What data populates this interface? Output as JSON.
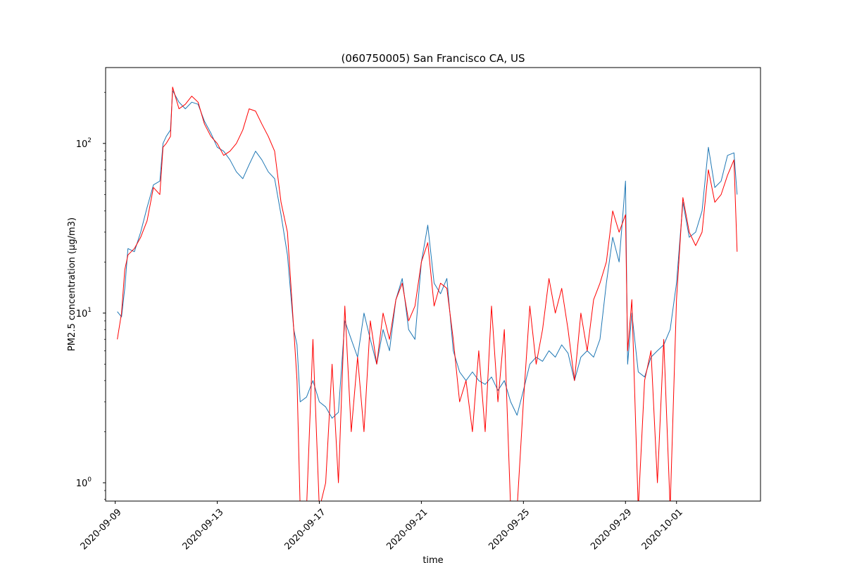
{
  "chart_data": {
    "type": "line",
    "title": "(060750005) San Francisco CA, US",
    "xlabel": "time",
    "ylabel": "PM2.5 concentration (μg/m3)",
    "yscale": "log",
    "ylim": [
      0.78,
      280
    ],
    "xlim": [
      "2020-09-08T15:00",
      "2020-10-04T07:00"
    ],
    "grid": false,
    "legend": "none",
    "x_ticks": [
      "2020-09-09",
      "2020-09-13",
      "2020-09-17",
      "2020-09-21",
      "2020-09-25",
      "2020-09-29",
      "2020-10-01"
    ],
    "y_ticks": [
      {
        "value": 1,
        "base": "10",
        "exp": "0"
      },
      {
        "value": 10,
        "base": "10",
        "exp": "1"
      },
      {
        "value": 100,
        "base": "10",
        "exp": "2"
      }
    ],
    "series": [
      {
        "color": "#1f77b4",
        "points": [
          [
            "2020-09-09T02:00",
            10.2
          ],
          [
            "2020-09-09T06:00",
            9.5
          ],
          [
            "2020-09-09T09:00",
            14
          ],
          [
            "2020-09-09T12:00",
            24
          ],
          [
            "2020-09-09T18:00",
            23
          ],
          [
            "2020-09-10T00:00",
            30
          ],
          [
            "2020-09-10T06:00",
            42
          ],
          [
            "2020-09-10T12:00",
            57
          ],
          [
            "2020-09-10T18:00",
            60
          ],
          [
            "2020-09-10T21:00",
            100
          ],
          [
            "2020-09-11T00:00",
            110
          ],
          [
            "2020-09-11T04:00",
            120
          ],
          [
            "2020-09-11T06:00",
            205
          ],
          [
            "2020-09-11T12:00",
            175
          ],
          [
            "2020-09-11T18:00",
            160
          ],
          [
            "2020-09-12T00:00",
            175
          ],
          [
            "2020-09-12T06:00",
            170
          ],
          [
            "2020-09-12T12:00",
            135
          ],
          [
            "2020-09-12T18:00",
            115
          ],
          [
            "2020-09-13T00:00",
            95
          ],
          [
            "2020-09-13T06:00",
            90
          ],
          [
            "2020-09-13T12:00",
            80
          ],
          [
            "2020-09-13T18:00",
            68
          ],
          [
            "2020-09-14T00:00",
            62
          ],
          [
            "2020-09-14T06:00",
            75
          ],
          [
            "2020-09-14T12:00",
            90
          ],
          [
            "2020-09-14T18:00",
            80
          ],
          [
            "2020-09-15T00:00",
            68
          ],
          [
            "2020-09-15T06:00",
            62
          ],
          [
            "2020-09-15T12:00",
            38
          ],
          [
            "2020-09-15T18:00",
            22
          ],
          [
            "2020-09-16T00:00",
            8
          ],
          [
            "2020-09-16T03:00",
            6.5
          ],
          [
            "2020-09-16T06:00",
            3
          ],
          [
            "2020-09-16T12:00",
            3.2
          ],
          [
            "2020-09-16T18:00",
            4
          ],
          [
            "2020-09-17T00:00",
            3
          ],
          [
            "2020-09-17T06:00",
            2.8
          ],
          [
            "2020-09-17T12:00",
            2.4
          ],
          [
            "2020-09-17T18:00",
            2.6
          ],
          [
            "2020-09-18T00:00",
            9
          ],
          [
            "2020-09-18T06:00",
            7
          ],
          [
            "2020-09-18T12:00",
            5.5
          ],
          [
            "2020-09-18T18:00",
            10
          ],
          [
            "2020-09-19T00:00",
            7
          ],
          [
            "2020-09-19T06:00",
            5
          ],
          [
            "2020-09-19T12:00",
            8
          ],
          [
            "2020-09-19T18:00",
            6
          ],
          [
            "2020-09-20T00:00",
            12
          ],
          [
            "2020-09-20T06:00",
            16
          ],
          [
            "2020-09-20T12:00",
            8
          ],
          [
            "2020-09-20T18:00",
            7
          ],
          [
            "2020-09-21T00:00",
            20
          ],
          [
            "2020-09-21T06:00",
            33
          ],
          [
            "2020-09-21T12:00",
            15
          ],
          [
            "2020-09-21T18:00",
            13
          ],
          [
            "2020-09-22T00:00",
            16
          ],
          [
            "2020-09-22T06:00",
            6
          ],
          [
            "2020-09-22T12:00",
            4.5
          ],
          [
            "2020-09-22T18:00",
            4
          ],
          [
            "2020-09-23T00:00",
            4.5
          ],
          [
            "2020-09-23T06:00",
            4
          ],
          [
            "2020-09-23T12:00",
            3.8
          ],
          [
            "2020-09-23T18:00",
            4.2
          ],
          [
            "2020-09-24T00:00",
            3.5
          ],
          [
            "2020-09-24T06:00",
            4
          ],
          [
            "2020-09-24T12:00",
            3
          ],
          [
            "2020-09-24T18:00",
            2.5
          ],
          [
            "2020-09-25T00:00",
            3.5
          ],
          [
            "2020-09-25T06:00",
            5
          ],
          [
            "2020-09-25T12:00",
            5.5
          ],
          [
            "2020-09-25T18:00",
            5.2
          ],
          [
            "2020-09-26T00:00",
            6
          ],
          [
            "2020-09-26T06:00",
            5.5
          ],
          [
            "2020-09-26T12:00",
            6.5
          ],
          [
            "2020-09-26T18:00",
            5.8
          ],
          [
            "2020-09-27T00:00",
            4
          ],
          [
            "2020-09-27T06:00",
            5.5
          ],
          [
            "2020-09-27T12:00",
            6
          ],
          [
            "2020-09-27T18:00",
            5.5
          ],
          [
            "2020-09-28T00:00",
            7
          ],
          [
            "2020-09-28T06:00",
            15
          ],
          [
            "2020-09-28T12:00",
            28
          ],
          [
            "2020-09-28T18:00",
            20
          ],
          [
            "2020-09-29T00:00",
            60
          ],
          [
            "2020-09-29T02:00",
            5
          ],
          [
            "2020-09-29T06:00",
            10
          ],
          [
            "2020-09-29T12:00",
            4.5
          ],
          [
            "2020-09-29T18:00",
            4.2
          ],
          [
            "2020-09-30T00:00",
            5.5
          ],
          [
            "2020-09-30T06:00",
            6
          ],
          [
            "2020-09-30T12:00",
            6.5
          ],
          [
            "2020-09-30T18:00",
            8
          ],
          [
            "2020-10-01T00:00",
            15
          ],
          [
            "2020-10-01T06:00",
            45
          ],
          [
            "2020-10-01T12:00",
            28
          ],
          [
            "2020-10-01T18:00",
            30
          ],
          [
            "2020-10-02T00:00",
            40
          ],
          [
            "2020-10-02T06:00",
            95
          ],
          [
            "2020-10-02T12:00",
            55
          ],
          [
            "2020-10-02T18:00",
            60
          ],
          [
            "2020-10-03T00:00",
            85
          ],
          [
            "2020-10-03T06:00",
            88
          ],
          [
            "2020-10-03T09:00",
            50
          ]
        ]
      },
      {
        "color": "#ff0000",
        "points": [
          [
            "2020-09-09T02:00",
            7
          ],
          [
            "2020-09-09T06:00",
            10
          ],
          [
            "2020-09-09T09:00",
            18
          ],
          [
            "2020-09-09T12:00",
            22
          ],
          [
            "2020-09-09T18:00",
            24
          ],
          [
            "2020-09-10T00:00",
            28
          ],
          [
            "2020-09-10T06:00",
            35
          ],
          [
            "2020-09-10T12:00",
            55
          ],
          [
            "2020-09-10T18:00",
            50
          ],
          [
            "2020-09-10T21:00",
            95
          ],
          [
            "2020-09-11T00:00",
            100
          ],
          [
            "2020-09-11T04:00",
            110
          ],
          [
            "2020-09-11T06:00",
            215
          ],
          [
            "2020-09-11T12:00",
            160
          ],
          [
            "2020-09-11T18:00",
            170
          ],
          [
            "2020-09-12T00:00",
            190
          ],
          [
            "2020-09-12T06:00",
            175
          ],
          [
            "2020-09-12T12:00",
            130
          ],
          [
            "2020-09-12T18:00",
            110
          ],
          [
            "2020-09-13T00:00",
            100
          ],
          [
            "2020-09-13T06:00",
            85
          ],
          [
            "2020-09-13T12:00",
            90
          ],
          [
            "2020-09-13T18:00",
            100
          ],
          [
            "2020-09-14T00:00",
            120
          ],
          [
            "2020-09-14T06:00",
            160
          ],
          [
            "2020-09-14T12:00",
            155
          ],
          [
            "2020-09-14T18:00",
            130
          ],
          [
            "2020-09-15T00:00",
            110
          ],
          [
            "2020-09-15T06:00",
            90
          ],
          [
            "2020-09-15T12:00",
            45
          ],
          [
            "2020-09-15T18:00",
            30
          ],
          [
            "2020-09-16T00:00",
            8
          ],
          [
            "2020-09-16T03:00",
            4
          ],
          [
            "2020-09-16T06:00",
            0.7
          ],
          [
            "2020-09-16T12:00",
            0.7
          ],
          [
            "2020-09-16T18:00",
            7
          ],
          [
            "2020-09-17T00:00",
            0.7
          ],
          [
            "2020-09-17T06:00",
            1
          ],
          [
            "2020-09-17T12:00",
            5
          ],
          [
            "2020-09-17T18:00",
            1
          ],
          [
            "2020-09-18T00:00",
            11
          ],
          [
            "2020-09-18T06:00",
            2
          ],
          [
            "2020-09-18T12:00",
            5.5
          ],
          [
            "2020-09-18T18:00",
            2
          ],
          [
            "2020-09-19T00:00",
            9
          ],
          [
            "2020-09-19T06:00",
            5
          ],
          [
            "2020-09-19T12:00",
            10
          ],
          [
            "2020-09-19T18:00",
            7
          ],
          [
            "2020-09-20T00:00",
            12
          ],
          [
            "2020-09-20T06:00",
            15
          ],
          [
            "2020-09-20T12:00",
            9
          ],
          [
            "2020-09-20T18:00",
            11
          ],
          [
            "2020-09-21T00:00",
            20
          ],
          [
            "2020-09-21T06:00",
            26
          ],
          [
            "2020-09-21T12:00",
            11
          ],
          [
            "2020-09-21T18:00",
            15
          ],
          [
            "2020-09-22T00:00",
            14
          ],
          [
            "2020-09-22T06:00",
            7
          ],
          [
            "2020-09-22T12:00",
            3
          ],
          [
            "2020-09-22T18:00",
            4
          ],
          [
            "2020-09-23T00:00",
            2
          ],
          [
            "2020-09-23T06:00",
            6
          ],
          [
            "2020-09-23T12:00",
            2
          ],
          [
            "2020-09-23T18:00",
            11
          ],
          [
            "2020-09-24T00:00",
            3
          ],
          [
            "2020-09-24T06:00",
            8
          ],
          [
            "2020-09-24T12:00",
            0.7
          ],
          [
            "2020-09-24T18:00",
            0.7
          ],
          [
            "2020-09-25T00:00",
            3
          ],
          [
            "2020-09-25T06:00",
            11
          ],
          [
            "2020-09-25T12:00",
            5
          ],
          [
            "2020-09-25T18:00",
            8
          ],
          [
            "2020-09-26T00:00",
            16
          ],
          [
            "2020-09-26T06:00",
            10
          ],
          [
            "2020-09-26T12:00",
            14
          ],
          [
            "2020-09-26T18:00",
            8
          ],
          [
            "2020-09-27T00:00",
            4
          ],
          [
            "2020-09-27T06:00",
            10
          ],
          [
            "2020-09-27T12:00",
            6
          ],
          [
            "2020-09-27T18:00",
            12
          ],
          [
            "2020-09-28T00:00",
            15
          ],
          [
            "2020-09-28T06:00",
            20
          ],
          [
            "2020-09-28T12:00",
            40
          ],
          [
            "2020-09-28T18:00",
            30
          ],
          [
            "2020-09-29T00:00",
            38
          ],
          [
            "2020-09-29T02:00",
            6
          ],
          [
            "2020-09-29T06:00",
            12
          ],
          [
            "2020-09-29T12:00",
            0.7
          ],
          [
            "2020-09-29T18:00",
            4
          ],
          [
            "2020-09-30T00:00",
            6
          ],
          [
            "2020-09-30T06:00",
            1
          ],
          [
            "2020-09-30T12:00",
            7
          ],
          [
            "2020-09-30T18:00",
            0.7
          ],
          [
            "2020-10-01T00:00",
            12
          ],
          [
            "2020-10-01T06:00",
            48
          ],
          [
            "2020-10-01T12:00",
            30
          ],
          [
            "2020-10-01T18:00",
            25
          ],
          [
            "2020-10-02T00:00",
            30
          ],
          [
            "2020-10-02T06:00",
            70
          ],
          [
            "2020-10-02T12:00",
            45
          ],
          [
            "2020-10-02T18:00",
            50
          ],
          [
            "2020-10-03T00:00",
            65
          ],
          [
            "2020-10-03T06:00",
            80
          ],
          [
            "2020-10-03T09:00",
            23
          ]
        ]
      }
    ]
  }
}
